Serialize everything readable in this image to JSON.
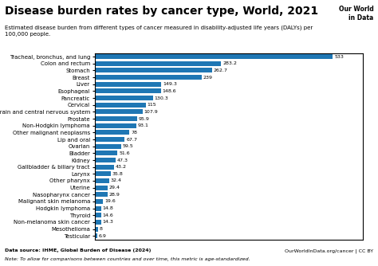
{
  "chart_data": {
    "type": "bar",
    "orientation": "horizontal",
    "title": "Disease burden rates by cancer type, World, 2021",
    "subtitle": "Estimated disease burden from different types of cancer measured in disability-adjusted life years (DALYs) per\n100,000 people.",
    "categories": [
      "Tracheal, bronchus, and lung",
      "Colon and rectum",
      "Stomach",
      "Breast",
      "Liver",
      "Esophageal",
      "Pancreatic",
      "Cervical",
      "Brain and central nervous system",
      "Prostate",
      "Non-Hodgkin lymphoma",
      "Other malignant neoplasms",
      "Lip and oral",
      "Ovarian",
      "Bladder",
      "Kidney",
      "Gallbladder & biliary tract",
      "Larynx",
      "Other pharynx",
      "Uterine",
      "Nasopharynx cancer",
      "Malignant skin melanoma",
      "Hodgkin lymphoma",
      "Thyroid",
      "Non-melanoma skin cancer",
      "Mesothelioma",
      "Testicular"
    ],
    "values": [
      533,
      283.2,
      262.7,
      239,
      149.3,
      148.6,
      130.3,
      115,
      107.9,
      95.9,
      93.1,
      78,
      67.7,
      59.5,
      51.6,
      47.3,
      43.2,
      35.8,
      32.4,
      29.4,
      28.9,
      19.6,
      14.8,
      14.6,
      14.3,
      8,
      6.9
    ],
    "xlim": [
      0,
      600
    ],
    "data_labels": true,
    "tick_labels": "y",
    "grid": false,
    "annotations": [
      "Our World",
      "in Data",
      "Data source: IHME, Global Burden of Disease (2024)",
      "OurWorldInData.org/cancer | CC BY",
      "Note: To allow for comparisons between countries and over time, this metric is age-standardized."
    ]
  }
}
